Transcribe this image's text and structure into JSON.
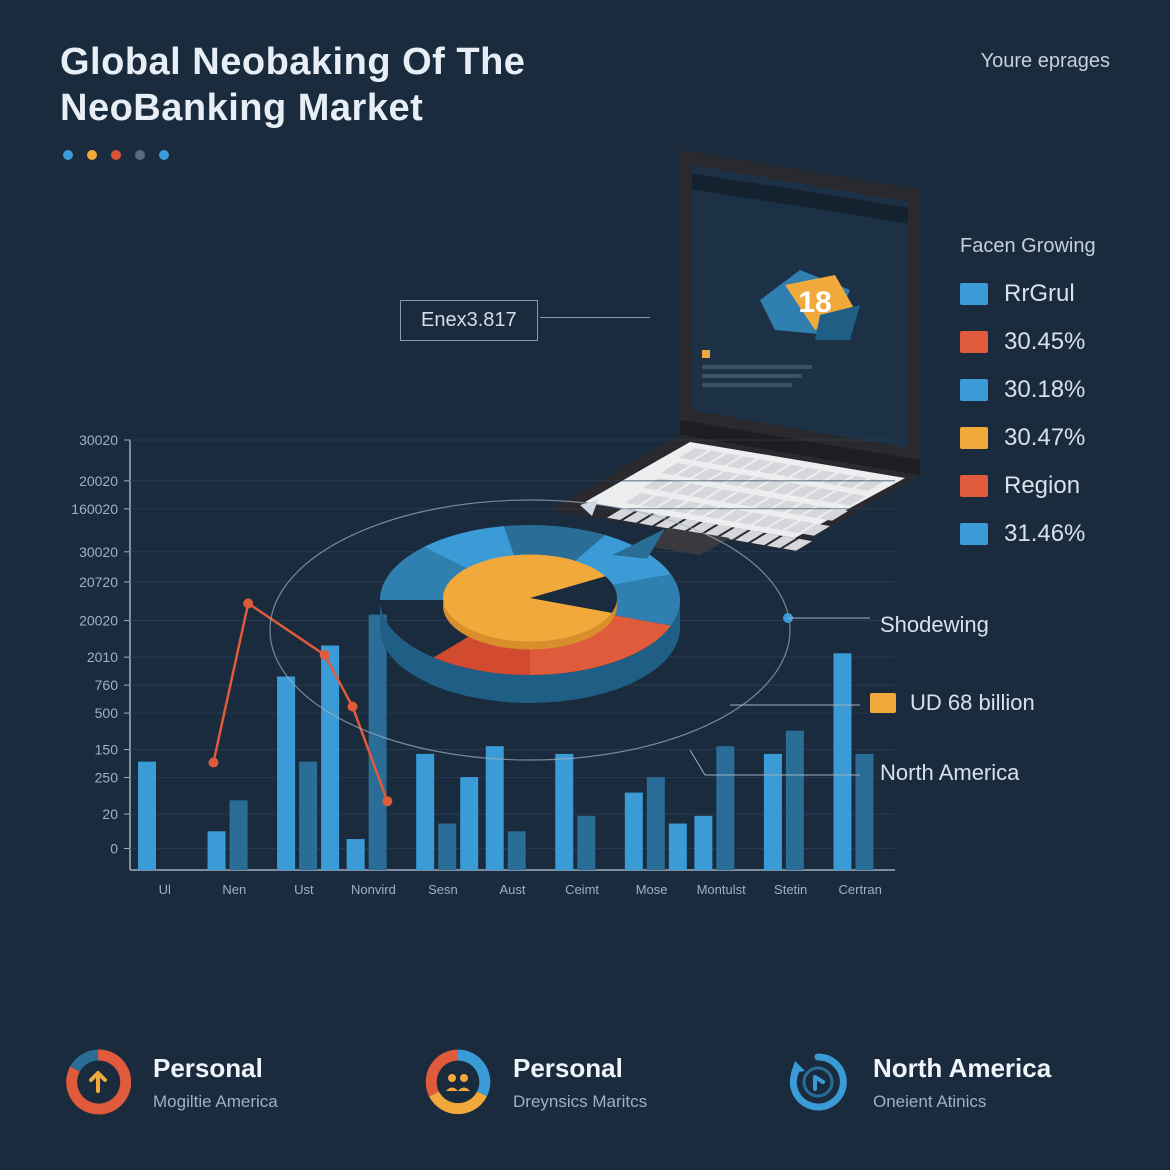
{
  "header": {
    "title": "Global Neobaking Of The NeoBanking Market",
    "subtitle_link": "Youre eprages"
  },
  "palette_dots": [
    "#3b9bd6",
    "#f2a93c",
    "#d95436",
    "#5a6d80",
    "#3b9bd6"
  ],
  "callout": {
    "label": "Enex3.817"
  },
  "laptop": {
    "body_color": "#2a2a2e",
    "screen_color": "#1c3046",
    "keyboard_color": "#eceef0",
    "key_color": "#d5d7da",
    "accent_badge": {
      "text": "18",
      "fill": "#f2a93c",
      "text_color": "#ffffff"
    },
    "shape_colors": [
      "#2f7fb0",
      "#1f5e85",
      "#f2a93c"
    ]
  },
  "legend": {
    "title": "Facen Growing",
    "items": [
      {
        "color": "#3b9bd6",
        "label": "RrGrul"
      },
      {
        "color": "#e05a3c",
        "label": "30.45%"
      },
      {
        "color": "#3b9bd6",
        "label": "30.18%"
      },
      {
        "color": "#f2a93c",
        "label": "30.47%"
      },
      {
        "color": "#e05a3c",
        "label": "Region"
      },
      {
        "color": "#3b9bd6",
        "label": "31.46%"
      }
    ]
  },
  "annotations": {
    "shodewing": "Shodewing",
    "ud_billion": {
      "color": "#f2a93c",
      "label": "UD 68 billion"
    },
    "north_america": "North America"
  },
  "bar_chart": {
    "type": "bar+line",
    "background": "#1a2b3d",
    "axis_color": "#9fb0c2",
    "grid_color": "#2c4156",
    "bar_color": "#3b9bd6",
    "bar_color_dark": "#2a6d96",
    "line_color": "#e05a3c",
    "y_ticks": [
      "30020",
      "20020",
      "160020",
      "30020",
      "20720",
      "20020",
      "2010",
      "760",
      "500",
      "150",
      "250",
      "20",
      "0"
    ],
    "y_positions": [
      0.0,
      0.095,
      0.16,
      0.26,
      0.33,
      0.42,
      0.505,
      0.57,
      0.635,
      0.72,
      0.785,
      0.87,
      0.95
    ],
    "x_labels": [
      "Ul",
      "Nen",
      "Ust",
      "Nonvird",
      "Sesn",
      "Aust",
      "Ceimt",
      "Mose",
      "Montulst",
      "Stetin",
      "Certran"
    ],
    "bars": [
      [
        0.28
      ],
      [
        0.1,
        0.18
      ],
      [
        0.5,
        0.28,
        0.58
      ],
      [
        0.08,
        0.66
      ],
      [
        0.3,
        0.12,
        0.24
      ],
      [
        0.32,
        0.1
      ],
      [
        0.3,
        0.14
      ],
      [
        0.2,
        0.24,
        0.12
      ],
      [
        0.14,
        0.32
      ],
      [
        0.3,
        0.36
      ],
      [
        0.56,
        0.3
      ]
    ],
    "line_points": [
      [
        1.2,
        0.25
      ],
      [
        1.7,
        0.62
      ],
      [
        2.8,
        0.5
      ],
      [
        3.2,
        0.38
      ],
      [
        3.7,
        0.16
      ]
    ]
  },
  "pie_chart": {
    "type": "pie-3d",
    "center_color": "#f2a93c",
    "slices": [
      {
        "color": "#2f7fb0",
        "start": 180,
        "end": 225
      },
      {
        "color": "#3b9bd6",
        "start": 225,
        "end": 260
      },
      {
        "color": "#2a6d96",
        "start": 260,
        "end": 300
      },
      {
        "color": "#3b9bd6",
        "start": 300,
        "end": 340
      },
      {
        "color": "#2f7fb0",
        "start": 340,
        "end": 20
      },
      {
        "color": "#e05a3c",
        "start": 20,
        "end": 90
      },
      {
        "color": "#d24a30",
        "start": 90,
        "end": 130
      }
    ],
    "depth_color": "#1f5e85"
  },
  "footer": [
    {
      "title": "Personal",
      "sub": "Mogiltie America",
      "icon": "donut-arrow",
      "colors": [
        "#e05a3c",
        "#f2a93c",
        "#2a6d96"
      ]
    },
    {
      "title": "Personal",
      "sub": "Dreynsics Maritcs",
      "icon": "donut-people",
      "colors": [
        "#3b9bd6",
        "#f2a93c",
        "#e05a3c"
      ]
    },
    {
      "title": "North America",
      "sub": "Oneient Atinics",
      "icon": "cycle-arrow",
      "colors": [
        "#3b9bd6",
        "#2a6d96"
      ]
    }
  ],
  "styling": {
    "title_fontsize": 38,
    "legend_fontsize": 24,
    "axis_fontsize": 14,
    "footer_title_fontsize": 26
  }
}
